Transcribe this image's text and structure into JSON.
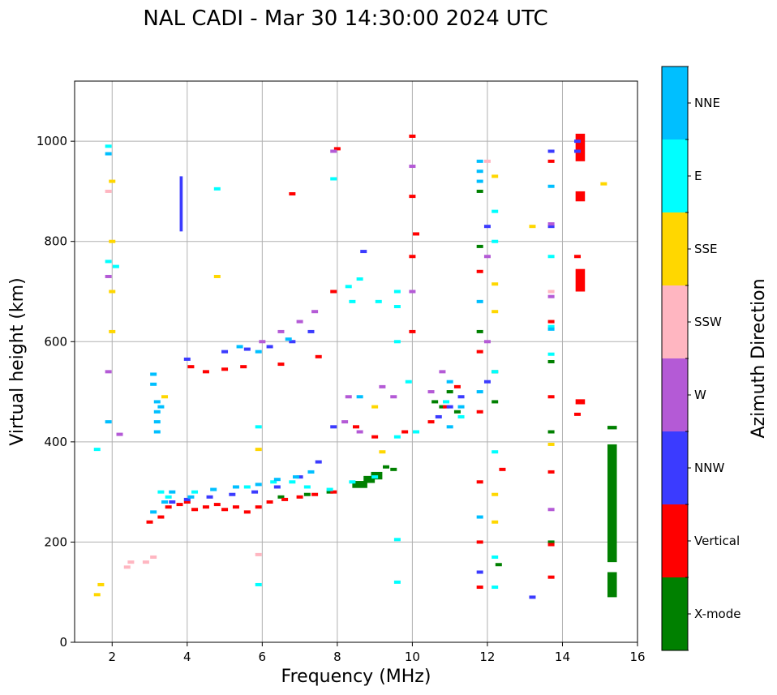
{
  "chart_data": {
    "type": "scatter",
    "title": "NAL CADI - Mar 30 14:30:00 2024 UTC",
    "xlabel": "Frequency (MHz)",
    "ylabel": "Virtual height (km)",
    "xlim": [
      1,
      16
    ],
    "ylim": [
      0,
      1120
    ],
    "xticks": [
      2,
      4,
      6,
      8,
      10,
      12,
      14,
      16
    ],
    "yticks": [
      0,
      200,
      400,
      600,
      800,
      1000
    ],
    "grid": true,
    "colorbar": {
      "title": "Azimuth Direction",
      "categories": [
        {
          "name": "X-mode",
          "color": "#008000"
        },
        {
          "name": "Vertical",
          "color": "#ff0000"
        },
        {
          "name": "NNW",
          "color": "#3b3bff"
        },
        {
          "name": "W",
          "color": "#b45ad6"
        },
        {
          "name": "SSW",
          "color": "#ffb6c1"
        },
        {
          "name": "SSE",
          "color": "#ffd700"
        },
        {
          "name": "E",
          "color": "#00ffff"
        },
        {
          "name": "NNE",
          "color": "#00bfff"
        }
      ]
    },
    "block_series": [
      {
        "name": "X-mode",
        "blocks": [
          [
            15.2,
            15.45,
            160,
            395
          ],
          [
            15.2,
            15.45,
            90,
            140
          ],
          [
            15.2,
            15.45,
            425,
            432
          ],
          [
            8.4,
            8.8,
            308,
            322
          ],
          [
            8.7,
            9.0,
            318,
            332
          ],
          [
            8.9,
            9.2,
            325,
            340
          ]
        ]
      },
      {
        "name": "Vertical",
        "blocks": [
          [
            14.35,
            14.6,
            960,
            1015
          ],
          [
            14.35,
            14.6,
            880,
            900
          ],
          [
            14.35,
            14.6,
            700,
            745
          ],
          [
            14.35,
            14.6,
            475,
            485
          ]
        ]
      },
      {
        "name": "NNW",
        "blocks": [
          [
            3.8,
            3.88,
            820,
            930
          ]
        ]
      }
    ],
    "point_series": [
      {
        "name": "X-mode",
        "points": [
          [
            10.6,
            480
          ],
          [
            10.8,
            470
          ],
          [
            11.0,
            500
          ],
          [
            11.2,
            460
          ],
          [
            9.3,
            350
          ],
          [
            9.5,
            345
          ],
          [
            7.8,
            300
          ],
          [
            7.2,
            295
          ],
          [
            6.5,
            290
          ],
          [
            12.2,
            540
          ],
          [
            12.2,
            480
          ],
          [
            13.7,
            560
          ],
          [
            13.7,
            420
          ],
          [
            13.7,
            200
          ],
          [
            11.8,
            620
          ],
          [
            11.8,
            790
          ],
          [
            11.8,
            900
          ],
          [
            12.3,
            155
          ]
        ]
      },
      {
        "name": "Vertical",
        "points": [
          [
            3.5,
            270
          ],
          [
            3.8,
            275
          ],
          [
            4.0,
            280
          ],
          [
            4.2,
            265
          ],
          [
            4.5,
            270
          ],
          [
            4.8,
            275
          ],
          [
            5.0,
            265
          ],
          [
            5.3,
            270
          ],
          [
            5.6,
            260
          ],
          [
            5.9,
            270
          ],
          [
            6.2,
            280
          ],
          [
            6.6,
            285
          ],
          [
            7.0,
            290
          ],
          [
            7.4,
            295
          ],
          [
            7.9,
            300
          ],
          [
            3.0,
            240
          ],
          [
            3.3,
            250
          ],
          [
            4.1,
            550
          ],
          [
            4.5,
            540
          ],
          [
            5.0,
            545
          ],
          [
            5.5,
            550
          ],
          [
            6.5,
            555
          ],
          [
            7.5,
            570
          ],
          [
            8.5,
            430
          ],
          [
            9.0,
            410
          ],
          [
            9.8,
            420
          ],
          [
            10.5,
            440
          ],
          [
            10.9,
            470
          ],
          [
            11.2,
            510
          ],
          [
            10.0,
            1010
          ],
          [
            10.0,
            890
          ],
          [
            10.0,
            770
          ],
          [
            10.0,
            620
          ],
          [
            11.8,
            740
          ],
          [
            11.8,
            580
          ],
          [
            11.8,
            460
          ],
          [
            11.8,
            320
          ],
          [
            11.8,
            200
          ],
          [
            11.8,
            110
          ],
          [
            13.7,
            960
          ],
          [
            13.7,
            640
          ],
          [
            13.7,
            490
          ],
          [
            13.7,
            340
          ],
          [
            13.7,
            195
          ],
          [
            13.7,
            130
          ],
          [
            14.4,
            770
          ],
          [
            14.4,
            455
          ],
          [
            6.8,
            895
          ],
          [
            7.9,
            700
          ],
          [
            8.0,
            985
          ],
          [
            10.1,
            815
          ],
          [
            12.4,
            345
          ]
        ]
      },
      {
        "name": "NNW",
        "points": [
          [
            3.6,
            280
          ],
          [
            4.0,
            285
          ],
          [
            4.6,
            290
          ],
          [
            5.2,
            295
          ],
          [
            5.8,
            300
          ],
          [
            6.4,
            310
          ],
          [
            7.0,
            330
          ],
          [
            7.5,
            360
          ],
          [
            7.9,
            430
          ],
          [
            5.0,
            580
          ],
          [
            5.6,
            585
          ],
          [
            6.2,
            590
          ],
          [
            6.8,
            600
          ],
          [
            7.3,
            620
          ],
          [
            4.0,
            565
          ],
          [
            10.7,
            450
          ],
          [
            11.0,
            470
          ],
          [
            11.3,
            490
          ],
          [
            13.2,
            90
          ],
          [
            11.8,
            140
          ],
          [
            13.7,
            980
          ],
          [
            13.7,
            830
          ],
          [
            8.7,
            780
          ],
          [
            12.0,
            830
          ],
          [
            12.0,
            520
          ],
          [
            14.4,
            1000
          ],
          [
            14.4,
            980
          ]
        ]
      },
      {
        "name": "W",
        "points": [
          [
            6.5,
            620
          ],
          [
            7.0,
            640
          ],
          [
            7.4,
            660
          ],
          [
            6.0,
            600
          ],
          [
            8.2,
            440
          ],
          [
            8.6,
            420
          ],
          [
            9.2,
            510
          ],
          [
            10.5,
            500
          ],
          [
            10.8,
            540
          ],
          [
            1.9,
            730
          ],
          [
            1.9,
            540
          ],
          [
            2.2,
            415
          ],
          [
            13.7,
            835
          ],
          [
            13.7,
            690
          ],
          [
            13.7,
            265
          ],
          [
            12.0,
            770
          ],
          [
            12.0,
            600
          ],
          [
            10.0,
            950
          ],
          [
            10.0,
            700
          ],
          [
            7.9,
            980
          ],
          [
            9.5,
            490
          ],
          [
            8.3,
            490
          ]
        ]
      },
      {
        "name": "SSW",
        "points": [
          [
            2.4,
            150
          ],
          [
            2.5,
            160
          ],
          [
            2.9,
            160
          ],
          [
            3.1,
            170
          ],
          [
            1.9,
            900
          ],
          [
            13.7,
            700
          ],
          [
            12.0,
            960
          ],
          [
            5.9,
            175
          ]
        ]
      },
      {
        "name": "SSE",
        "points": [
          [
            1.6,
            95
          ],
          [
            1.7,
            115
          ],
          [
            2.0,
            920
          ],
          [
            2.0,
            800
          ],
          [
            2.0,
            700
          ],
          [
            2.0,
            620
          ],
          [
            4.8,
            730
          ],
          [
            12.2,
            930
          ],
          [
            12.2,
            715
          ],
          [
            12.2,
            660
          ],
          [
            12.2,
            295
          ],
          [
            12.2,
            240
          ],
          [
            13.2,
            830
          ],
          [
            15.1,
            915
          ],
          [
            3.4,
            490
          ],
          [
            5.9,
            385
          ],
          [
            13.7,
            395
          ],
          [
            9.0,
            470
          ],
          [
            9.2,
            380
          ]
        ]
      },
      {
        "name": "E",
        "points": [
          [
            3.3,
            300
          ],
          [
            3.5,
            290
          ],
          [
            4.2,
            300
          ],
          [
            5.6,
            310
          ],
          [
            6.3,
            320
          ],
          [
            6.8,
            320
          ],
          [
            7.2,
            310
          ],
          [
            7.8,
            305
          ],
          [
            8.4,
            320
          ],
          [
            9.0,
            330
          ],
          [
            9.6,
            410
          ],
          [
            10.1,
            420
          ],
          [
            10.9,
            480
          ],
          [
            11.3,
            450
          ],
          [
            12.2,
            860
          ],
          [
            12.2,
            800
          ],
          [
            12.2,
            540
          ],
          [
            12.2,
            380
          ],
          [
            12.2,
            170
          ],
          [
            12.2,
            110
          ],
          [
            8.4,
            680
          ],
          [
            8.6,
            725
          ],
          [
            9.1,
            680
          ],
          [
            9.6,
            700
          ],
          [
            9.6,
            670
          ],
          [
            9.6,
            600
          ],
          [
            9.6,
            205
          ],
          [
            9.6,
            120
          ],
          [
            4.8,
            905
          ],
          [
            7.9,
            925
          ],
          [
            13.7,
            770
          ],
          [
            13.7,
            630
          ],
          [
            13.7,
            575
          ],
          [
            1.9,
            990
          ],
          [
            1.9,
            760
          ],
          [
            2.1,
            750
          ],
          [
            1.6,
            385
          ],
          [
            5.9,
            115
          ],
          [
            5.9,
            430
          ],
          [
            9.9,
            520
          ],
          [
            8.3,
            710
          ]
        ]
      },
      {
        "name": "NNE",
        "points": [
          [
            3.1,
            260
          ],
          [
            3.4,
            280
          ],
          [
            3.6,
            300
          ],
          [
            4.1,
            290
          ],
          [
            4.7,
            305
          ],
          [
            5.3,
            310
          ],
          [
            5.9,
            315
          ],
          [
            6.4,
            325
          ],
          [
            6.9,
            330
          ],
          [
            7.3,
            340
          ],
          [
            8.6,
            490
          ],
          [
            3.1,
            535
          ],
          [
            3.1,
            515
          ],
          [
            3.2,
            480
          ],
          [
            3.2,
            460
          ],
          [
            3.2,
            440
          ],
          [
            3.2,
            420
          ],
          [
            3.3,
            470
          ],
          [
            11.0,
            430
          ],
          [
            11.3,
            470
          ],
          [
            11.0,
            520
          ],
          [
            11.8,
            960
          ],
          [
            11.8,
            940
          ],
          [
            11.8,
            920
          ],
          [
            11.8,
            680
          ],
          [
            11.8,
            500
          ],
          [
            11.8,
            250
          ],
          [
            13.7,
            910
          ],
          [
            13.7,
            625
          ],
          [
            5.4,
            590
          ],
          [
            5.9,
            580
          ],
          [
            6.7,
            605
          ],
          [
            1.9,
            975
          ],
          [
            1.9,
            440
          ]
        ]
      }
    ]
  }
}
